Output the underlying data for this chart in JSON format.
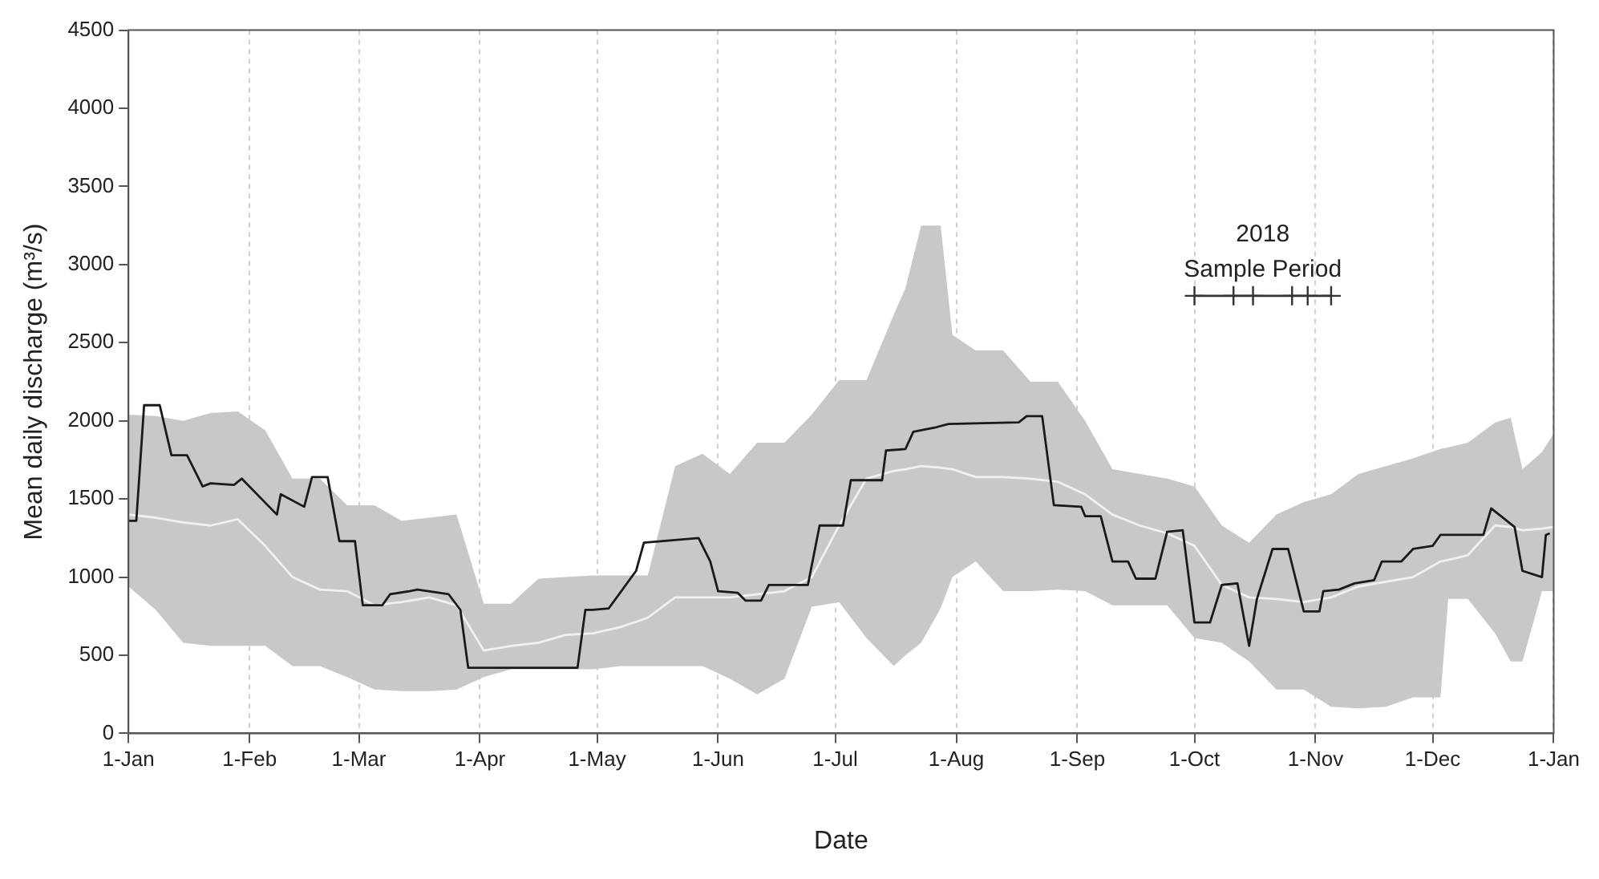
{
  "chart_data": {
    "type": "line",
    "xlabel": "Date",
    "ylabel": "Mean daily discharge (m³/s)",
    "xlim": [
      "2018-01-01",
      "2019-01-01"
    ],
    "xticks": [
      {
        "value": "2018-01-01",
        "label": "1-Jan"
      },
      {
        "value": "2018-02-01",
        "label": "1-Feb"
      },
      {
        "value": "2018-03-01",
        "label": "1-Mar"
      },
      {
        "value": "2018-04-01",
        "label": "1-Apr"
      },
      {
        "value": "2018-05-01",
        "label": "1-May"
      },
      {
        "value": "2018-06-01",
        "label": "1-Jun"
      },
      {
        "value": "2018-07-01",
        "label": "1-Jul"
      },
      {
        "value": "2018-08-01",
        "label": "1-Aug"
      },
      {
        "value": "2018-09-01",
        "label": "1-Sep"
      },
      {
        "value": "2018-10-01",
        "label": "1-Oct"
      },
      {
        "value": "2018-11-01",
        "label": "1-Nov"
      },
      {
        "value": "2018-12-01",
        "label": "1-Dec"
      },
      {
        "value": "2019-01-01",
        "label": "1-Jan"
      }
    ],
    "ylim": [
      0,
      4500
    ],
    "yticks": [
      0,
      500,
      1000,
      1500,
      2000,
      2500,
      3000,
      3500,
      4000,
      4500
    ],
    "grid": "x",
    "legend": false,
    "marker": "none",
    "x": [
      "2018-01-01",
      "2018-01-08",
      "2018-01-15",
      "2018-01-22",
      "2018-01-29",
      "2018-02-05",
      "2018-02-12",
      "2018-02-19",
      "2018-02-26",
      "2018-03-05",
      "2018-03-12",
      "2018-03-19",
      "2018-03-26",
      "2018-04-02",
      "2018-04-09",
      "2018-04-16",
      "2018-04-23",
      "2018-04-30",
      "2018-05-07",
      "2018-05-14",
      "2018-05-21",
      "2018-05-28",
      "2018-06-04",
      "2018-06-11",
      "2018-06-18",
      "2018-06-25",
      "2018-07-02",
      "2018-07-09",
      "2018-07-16",
      "2018-07-19",
      "2018-07-23",
      "2018-07-28",
      "2018-07-31",
      "2018-08-06",
      "2018-08-13",
      "2018-08-20",
      "2018-08-27",
      "2018-09-03",
      "2018-09-10",
      "2018-09-17",
      "2018-09-24",
      "2018-10-01",
      "2018-10-08",
      "2018-10-15",
      "2018-10-22",
      "2018-10-29",
      "2018-11-05",
      "2018-11-12",
      "2018-11-19",
      "2018-11-26",
      "2018-12-03",
      "2018-12-05",
      "2018-12-10",
      "2018-12-17",
      "2018-12-21",
      "2018-12-24",
      "2018-12-29",
      "2019-01-01"
    ],
    "series": [
      {
        "color": "#f0f0f0",
        "values": [
          1400,
          1380,
          1350,
          1330,
          1370,
          1200,
          1000,
          920,
          910,
          820,
          840,
          870,
          820,
          530,
          560,
          580,
          630,
          640,
          680,
          740,
          870,
          870,
          870,
          890,
          910,
          1000,
          1330,
          1630,
          1680,
          1690,
          1710,
          1700,
          1690,
          1640,
          1640,
          1630,
          1610,
          1530,
          1400,
          1330,
          1280,
          1200,
          950,
          870,
          860,
          840,
          870,
          940,
          970,
          1000,
          1100,
          1110,
          1140,
          1330,
          1320,
          1300,
          1310,
          1320
        ],
        "upper": [
          2040,
          2030,
          2000,
          2050,
          2060,
          1940,
          1630,
          1630,
          1460,
          1460,
          1360,
          1380,
          1400,
          830,
          830,
          990,
          1000,
          1010,
          1010,
          1010,
          1710,
          1790,
          1660,
          1860,
          1860,
          2040,
          2260,
          2260,
          2680,
          2850,
          3250,
          3250,
          2550,
          2450,
          2450,
          2250,
          2250,
          2000,
          1690,
          1660,
          1630,
          1580,
          1330,
          1220,
          1400,
          1480,
          1530,
          1660,
          1710,
          1760,
          1820,
          1830,
          1860,
          1990,
          2020,
          1690,
          1800,
          1920
        ],
        "lower": [
          940,
          790,
          580,
          560,
          560,
          560,
          430,
          430,
          360,
          280,
          270,
          270,
          280,
          360,
          410,
          410,
          410,
          410,
          430,
          430,
          430,
          430,
          350,
          250,
          350,
          810,
          840,
          610,
          430,
          500,
          580,
          800,
          1000,
          1100,
          910,
          910,
          920,
          910,
          820,
          820,
          820,
          610,
          580,
          460,
          280,
          280,
          170,
          160,
          170,
          230,
          230,
          860,
          860,
          640,
          460,
          460,
          910,
          910
        ]
      },
      {
        "color": "#1a1a1a",
        "x": [
          "2018-01-01",
          "2018-01-03",
          "2018-01-05",
          "2018-01-09",
          "2018-01-12",
          "2018-01-16",
          "2018-01-20",
          "2018-01-22",
          "2018-01-28",
          "2018-01-30",
          "2018-02-08",
          "2018-02-09",
          "2018-02-15",
          "2018-02-17",
          "2018-02-21",
          "2018-02-24",
          "2018-02-28",
          "2018-03-02",
          "2018-03-07",
          "2018-03-09",
          "2018-03-14",
          "2018-03-16",
          "2018-03-24",
          "2018-03-27",
          "2018-03-29",
          "2018-04-26",
          "2018-04-28",
          "2018-04-30",
          "2018-05-04",
          "2018-05-11",
          "2018-05-13",
          "2018-05-27",
          "2018-05-30",
          "2018-06-01",
          "2018-06-06",
          "2018-06-08",
          "2018-06-12",
          "2018-06-14",
          "2018-06-24",
          "2018-06-27",
          "2018-07-03",
          "2018-07-05",
          "2018-07-13",
          "2018-07-14",
          "2018-07-19",
          "2018-07-21",
          "2018-07-27",
          "2018-07-30",
          "2018-08-17",
          "2018-08-19",
          "2018-08-23",
          "2018-08-26",
          "2018-09-02",
          "2018-09-03",
          "2018-09-07",
          "2018-09-10",
          "2018-09-14",
          "2018-09-16",
          "2018-09-21",
          "2018-09-24",
          "2018-09-28",
          "2018-10-01",
          "2018-10-05",
          "2018-10-08",
          "2018-10-12",
          "2018-10-15",
          "2018-10-17",
          "2018-10-21",
          "2018-10-25",
          "2018-10-29",
          "2018-11-02",
          "2018-11-03",
          "2018-11-07",
          "2018-11-11",
          "2018-11-16",
          "2018-11-18",
          "2018-11-23",
          "2018-11-26",
          "2018-12-01",
          "2018-12-03",
          "2018-12-14",
          "2018-12-16",
          "2018-12-22",
          "2018-12-24",
          "2018-12-29",
          "2018-12-30",
          "2018-12-31"
        ],
        "values": [
          1360,
          1360,
          2100,
          2100,
          1780,
          1780,
          1580,
          1600,
          1590,
          1630,
          1400,
          1530,
          1450,
          1640,
          1640,
          1230,
          1230,
          820,
          820,
          890,
          910,
          920,
          890,
          790,
          420,
          420,
          790,
          790,
          800,
          1040,
          1220,
          1250,
          1100,
          910,
          900,
          850,
          850,
          950,
          950,
          1330,
          1330,
          1620,
          1620,
          1810,
          1820,
          1930,
          1960,
          1980,
          1990,
          2030,
          2030,
          1460,
          1450,
          1390,
          1390,
          1100,
          1100,
          990,
          990,
          1290,
          1300,
          710,
          710,
          950,
          960,
          560,
          860,
          1180,
          1180,
          780,
          780,
          910,
          920,
          960,
          980,
          1100,
          1100,
          1180,
          1200,
          1270,
          1270,
          1440,
          1320,
          1040,
          1000,
          1270,
          1280
        ]
      },
      {
        "type": "line",
        "marker": "cross",
        "color": "#333333",
        "x": [
          "2018-10-01",
          "2018-10-11",
          "2018-10-16",
          "2018-10-26",
          "2018-10-30",
          "2018-11-05"
        ],
        "values": [
          2800,
          2800,
          2800,
          2800,
          2800,
          2800
        ]
      }
    ],
    "annotations": [
      "2018",
      "Sample Period"
    ]
  }
}
